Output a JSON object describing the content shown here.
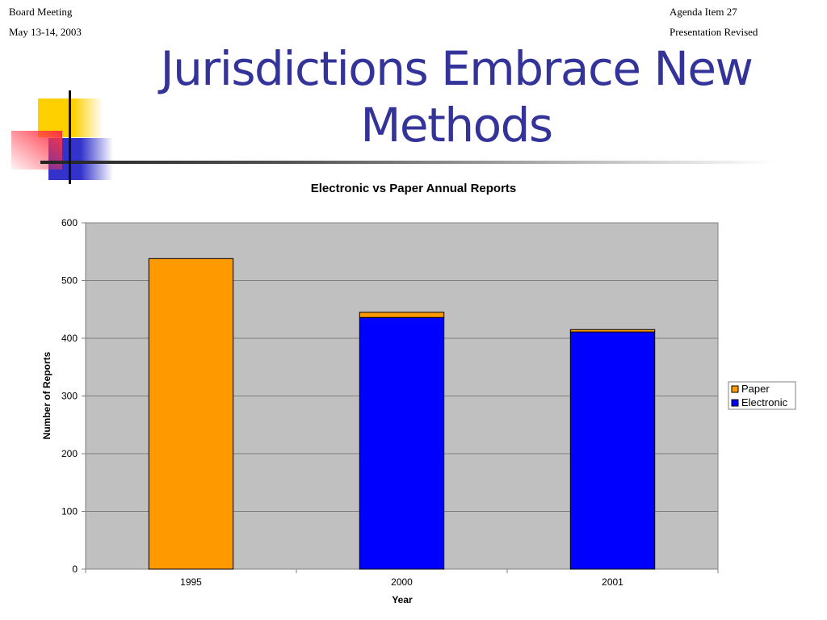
{
  "header": {
    "left_line1": "Board Meeting",
    "left_line2": "May 13-14, 2003",
    "right_line1": "Agenda Item 27",
    "right_line2": "Presentation Revised"
  },
  "slide": {
    "title_line1": "Jurisdictions Embrace New",
    "title_line2": "Methods"
  },
  "colors": {
    "title": "#333399",
    "paper": "#FF9900",
    "electronic": "#0000FF",
    "plot_bg": "#C0C0C0"
  },
  "chart_data": {
    "type": "bar",
    "stacked": true,
    "title": "Electronic vs Paper Annual Reports",
    "xlabel": "Year",
    "ylabel": "Number of Reports",
    "categories": [
      "1995",
      "2000",
      "2001"
    ],
    "series": [
      {
        "name": "Electronic",
        "color": "#0000FF",
        "values": [
          0,
          436,
          411
        ]
      },
      {
        "name": "Paper",
        "color": "#FF9900",
        "values": [
          538,
          9,
          4
        ]
      }
    ],
    "ylim": [
      0,
      600
    ],
    "yticks": [
      0,
      100,
      200,
      300,
      400,
      500,
      600
    ],
    "grid": true,
    "legend": {
      "position": "right",
      "entries": [
        {
          "name": "Paper",
          "color": "#FF9900"
        },
        {
          "name": "Electronic",
          "color": "#0000FF"
        }
      ]
    }
  }
}
